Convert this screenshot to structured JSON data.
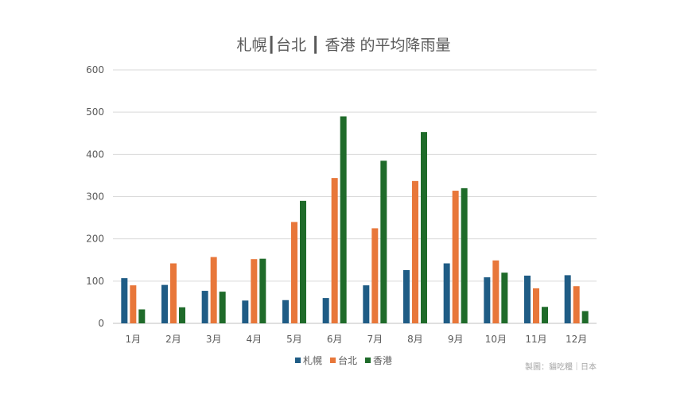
{
  "chart_data": {
    "type": "bar",
    "title": "札幌┃台北 ┃ 香港 的平均降雨量",
    "categories": [
      "1月",
      "2月",
      "3月",
      "4月",
      "5月",
      "6月",
      "7月",
      "8月",
      "9月",
      "10月",
      "11月",
      "12月"
    ],
    "series": [
      {
        "name": "札幌",
        "color": "#1f5c85",
        "values": [
          107,
          91,
          77,
          54,
          55,
          60,
          90,
          126,
          142,
          109,
          113,
          114
        ]
      },
      {
        "name": "台北",
        "color": "#e8773a",
        "values": [
          90,
          142,
          157,
          152,
          240,
          344,
          225,
          337,
          314,
          149,
          83,
          88
        ]
      },
      {
        "name": "香港",
        "color": "#1f6b2a",
        "values": [
          33,
          38,
          75,
          153,
          290,
          490,
          385,
          453,
          320,
          120,
          39,
          29
        ]
      }
    ],
    "ylim": [
      0,
      600
    ],
    "yticks": [
      "0",
      "100",
      "200",
      "300",
      "400",
      "500",
      "600"
    ],
    "grid": true,
    "legend_position": "bottom",
    "credit": "製圖：貓吃糧｜日本"
  }
}
